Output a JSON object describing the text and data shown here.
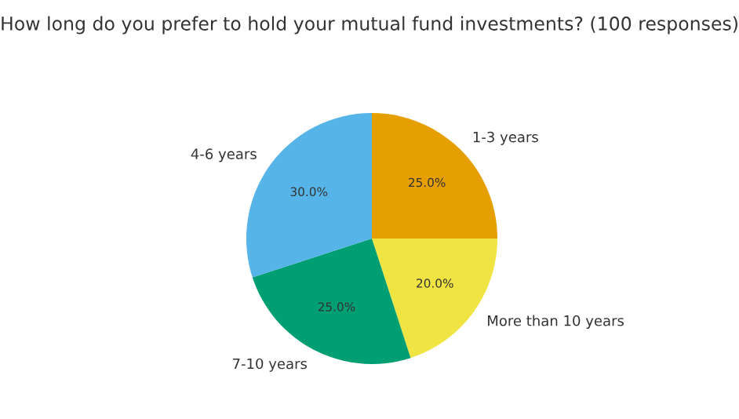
{
  "chart_data": {
    "type": "pie",
    "title": "How long do you prefer to hold your mutual fund investments? (100 responses)",
    "categories": [
      "1-3 years",
      "More than 10 years",
      "7-10 years",
      "4-6 years"
    ],
    "values": [
      25,
      20,
      25,
      30
    ],
    "colors": [
      "#e69f00",
      "#f0e442",
      "#009e73",
      "#56b4e9"
    ],
    "value_labels": [
      "25.0%",
      "20.0%",
      "25.0%",
      "30.0%"
    ]
  }
}
